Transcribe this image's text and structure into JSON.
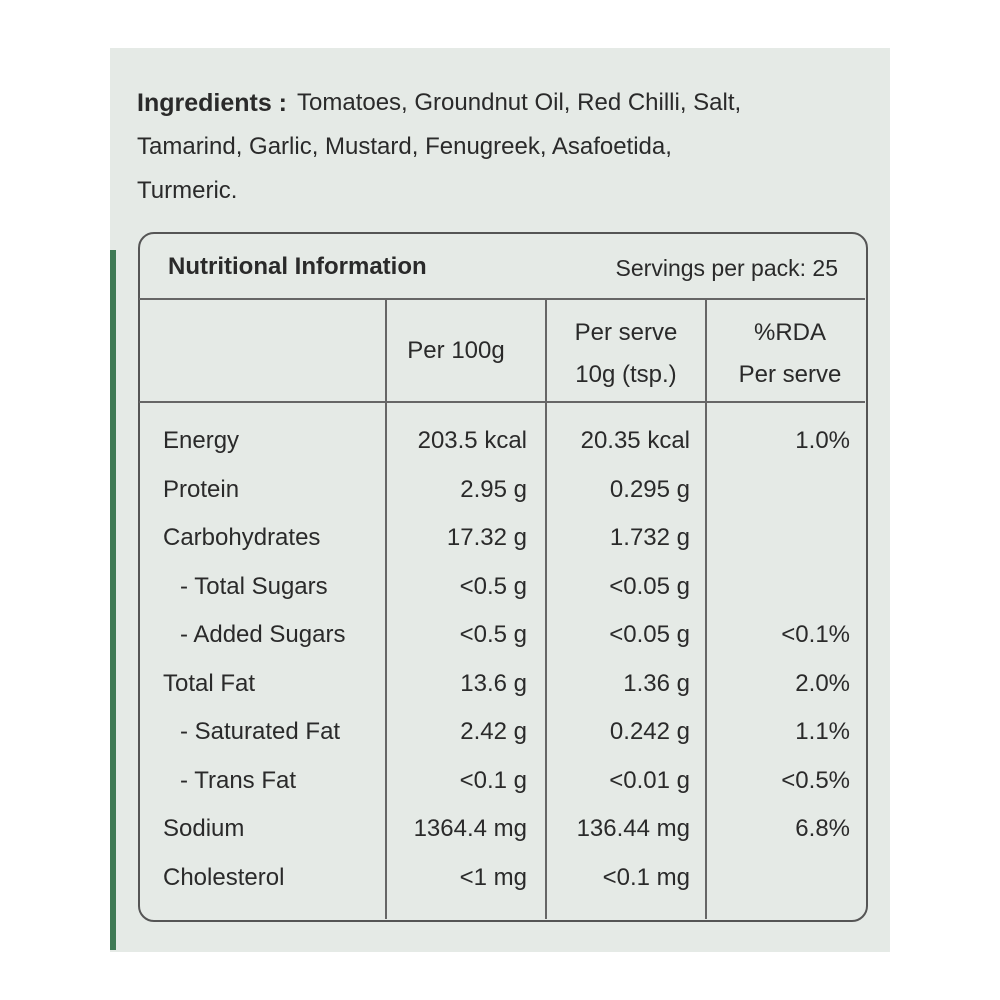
{
  "ingredients": {
    "label": "Ingredients :",
    "lines": [
      "Tomatoes, Groundnut Oil, Red Chilli, Salt,",
      "Tamarind, Garlic, Mustard, Fenugreek, Asafoetida,",
      "Turmeric."
    ]
  },
  "table": {
    "title": "Nutritional Information",
    "servings": "Servings per pack: 25",
    "headers": [
      [
        "Per 100g"
      ],
      [
        "Per serve",
        "10g (tsp.)"
      ],
      [
        "%RDA",
        "Per serve"
      ]
    ],
    "rows": [
      [
        "Energy",
        "203.5 kcal",
        "20.35 kcal",
        "1.0%"
      ],
      [
        "Protein",
        "2.95 g",
        "0.295 g",
        null
      ],
      [
        "Carbohydrates",
        "17.32 g",
        "1.732 g",
        null
      ],
      [
        "- Total Sugars",
        "<0.5 g",
        "<0.05 g",
        null
      ],
      [
        "- Added Sugars",
        "<0.5 g",
        "<0.05 g",
        "<0.1%"
      ],
      [
        "Total Fat",
        "13.6 g",
        "1.36 g",
        "2.0%"
      ],
      [
        "- Saturated Fat",
        "2.42 g",
        "0.242 g",
        "1.1%"
      ],
      [
        "- Trans Fat",
        "<0.1 g",
        "<0.01 g",
        "<0.5%"
      ],
      [
        "Sodium",
        "1364.4 mg",
        "136.44 mg",
        "6.8%"
      ],
      [
        "Cholesterol",
        "<1 mg",
        "<0.1 mg",
        null
      ]
    ]
  }
}
